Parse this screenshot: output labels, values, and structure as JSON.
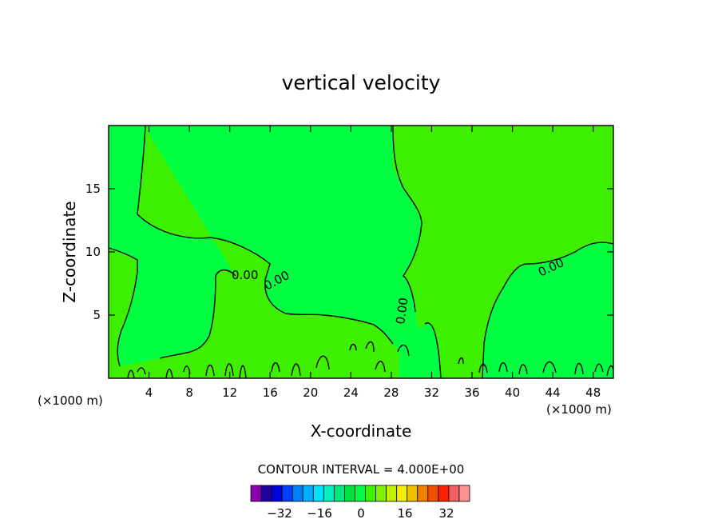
{
  "chart_data": {
    "type": "contour",
    "title": "vertical velocity",
    "xlabel": "X-coordinate",
    "ylabel": "Z-coordinate",
    "x_unit_label": "(×1000 m)",
    "x_unit_label_right": "(×1000 m)",
    "xlim": [
      0,
      50
    ],
    "ylim": [
      0,
      20
    ],
    "x_ticks": [
      4,
      8,
      12,
      16,
      20,
      24,
      28,
      32,
      36,
      40,
      44,
      48
    ],
    "y_ticks": [
      5,
      10,
      15
    ],
    "contour_labels": [
      "0.00",
      "0.00",
      "0.00",
      "0.00"
    ],
    "contour_interval_text": "CONTOUR INTERVAL = 4.000E+00",
    "colorbar": {
      "tick_labels": [
        "-32",
        "-16",
        "0",
        "16",
        "32"
      ],
      "colors": [
        "#8b00b0",
        "#2200a0",
        "#0000dd",
        "#0040ff",
        "#0080ff",
        "#00b0ff",
        "#00e0ff",
        "#00f0c0",
        "#00e880",
        "#00e040",
        "#00ff40",
        "#40f000",
        "#80f000",
        "#c0f000",
        "#f0f000",
        "#f0c000",
        "#f08000",
        "#f05000",
        "#ff2000",
        "#f06060",
        "#ff9090"
      ]
    },
    "field_colors": {
      "negative": "#00ff41",
      "positive": "#3cf000"
    }
  }
}
